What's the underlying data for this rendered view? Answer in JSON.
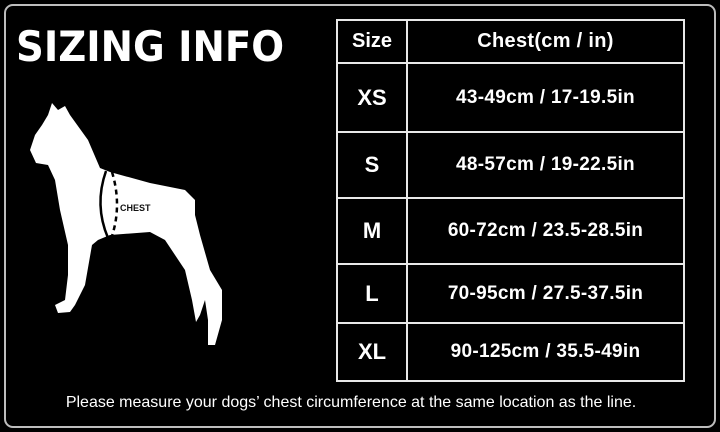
{
  "title": "SIZING INFO",
  "dog_label": "CHEST",
  "table": {
    "headers": [
      "Size",
      "Chest(cm / in)"
    ],
    "rows": [
      {
        "size": "XS",
        "chest": "43-49cm / 17-19.5in"
      },
      {
        "size": "S",
        "chest": "48-57cm / 19-22.5in"
      },
      {
        "size": "M",
        "chest": "60-72cm / 23.5-28.5in"
      },
      {
        "size": "L",
        "chest": "70-95cm / 27.5-37.5in"
      },
      {
        "size": "XL",
        "chest": "90-125cm / 35.5-49in"
      }
    ]
  },
  "note": "Please measure your dogs’  chest circumference at the same location as the line."
}
